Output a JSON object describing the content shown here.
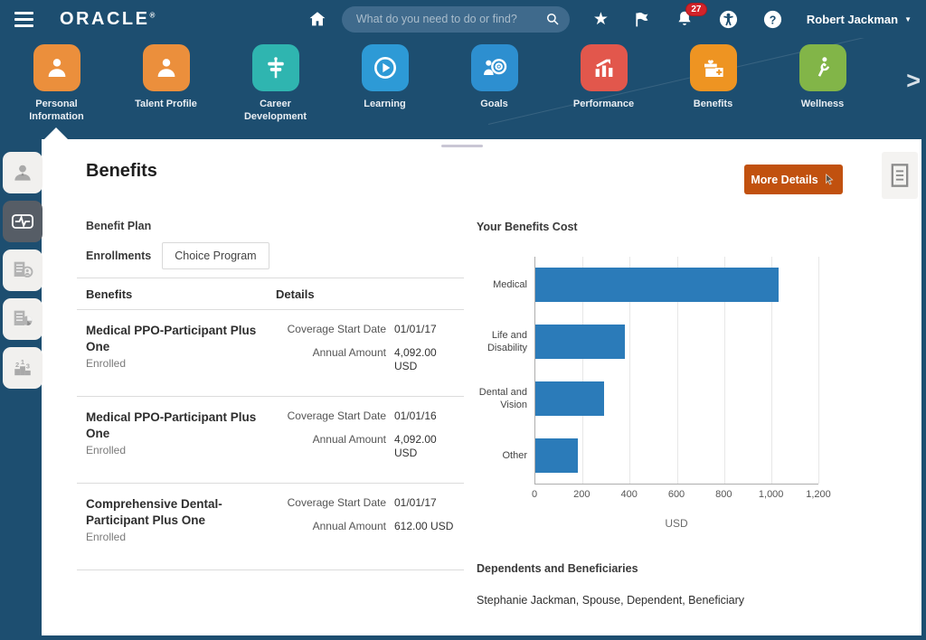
{
  "topbar": {
    "logo": "ORACLE",
    "search_placeholder": "What do you need to do or find?",
    "notifications_badge": "27",
    "user_name": "Robert Jackman"
  },
  "springboard": {
    "selected": "Personal Information",
    "items": [
      {
        "label": "Personal Information",
        "icon": "person-icon",
        "color": "#EB8F3C"
      },
      {
        "label": "Talent Profile",
        "icon": "person-icon",
        "color": "#EB8F3C"
      },
      {
        "label": "Career Development",
        "icon": "signpost-icon",
        "color": "#2FB5B0"
      },
      {
        "label": "Learning",
        "icon": "play-circle-icon",
        "color": "#2D9AD6"
      },
      {
        "label": "Goals",
        "icon": "person-target-icon",
        "color": "#2D8FD0"
      },
      {
        "label": "Performance",
        "icon": "chart-arrow-icon",
        "color": "#E2574C"
      },
      {
        "label": "Benefits",
        "icon": "gift-icon",
        "color": "#EE9422"
      },
      {
        "label": "Wellness",
        "icon": "exercise-icon",
        "color": "#82B548"
      }
    ]
  },
  "rail": {
    "selected": "health-pulse",
    "items": [
      "profile",
      "health-pulse",
      "document-person",
      "document-chart",
      "ranking"
    ]
  },
  "page": {
    "title": "Benefits",
    "more_details_label": "More Details",
    "accent_color": "#C1510F",
    "benefit_plan_label": "Benefit Plan",
    "enrollments_label": "Enrollments",
    "enrollment_program": "Choice Program",
    "table": {
      "col_benefits": "Benefits",
      "col_details": "Details",
      "rows": [
        {
          "name": "Medical PPO-Participant Plus One",
          "status": "Enrolled",
          "details": [
            {
              "label": "Coverage Start Date",
              "value": "01/01/17"
            },
            {
              "label": "Annual Amount",
              "value": "4,092.00 USD"
            }
          ]
        },
        {
          "name": "Medical PPO-Participant Plus One",
          "status": "Enrolled",
          "details": [
            {
              "label": "Coverage Start Date",
              "value": "01/01/16"
            },
            {
              "label": "Annual Amount",
              "value": "4,092.00 USD"
            }
          ]
        },
        {
          "name": "Comprehensive Dental-Participant Plus One",
          "status": "Enrolled",
          "details": [
            {
              "label": "Coverage Start Date",
              "value": "01/01/17"
            },
            {
              "label": "Annual Amount",
              "value": "612.00 USD"
            }
          ]
        }
      ]
    },
    "dependents": {
      "heading": "Dependents and Beneficiaries",
      "entries": [
        "Stephanie Jackman, Spouse, Dependent, Beneficiary"
      ]
    }
  },
  "chart_data": {
    "type": "bar",
    "orientation": "horizontal",
    "title": "Your Benefits Cost",
    "categories": [
      "Medical",
      "Life and Disability",
      "Dental and Vision",
      "Other"
    ],
    "values": [
      1030,
      380,
      290,
      180
    ],
    "xlabel": "USD",
    "xlim": [
      0,
      1200
    ],
    "xticks": [
      0,
      200,
      400,
      600,
      800,
      1000,
      1200
    ],
    "xtick_labels": [
      "0",
      "200",
      "400",
      "600",
      "800",
      "1,000",
      "1,200"
    ],
    "bar_color": "#2B7BB9",
    "grid": true,
    "legend": false
  }
}
